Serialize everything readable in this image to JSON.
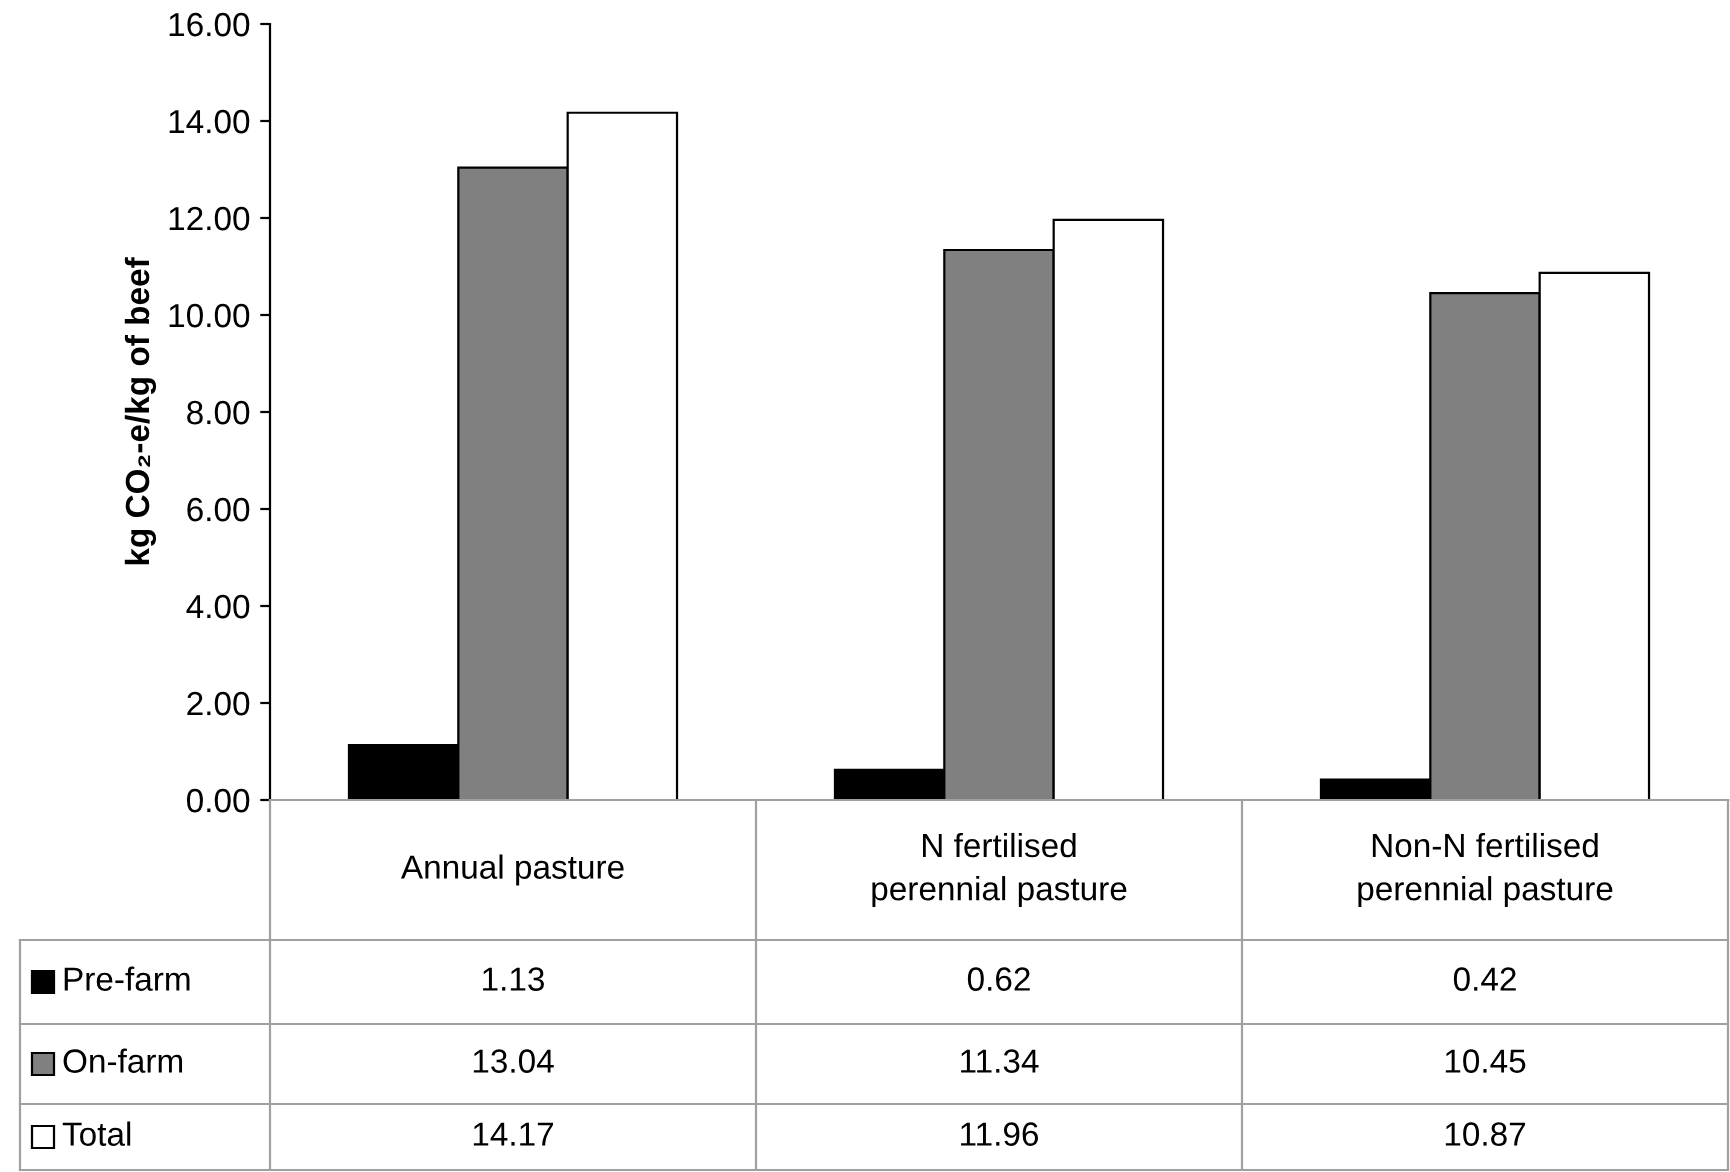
{
  "chart_data": {
    "type": "bar",
    "ylabel": "kg CO₂-e/kg of beef",
    "categories": [
      "Annual pasture",
      "N fertilised\nperennial pasture",
      "Non-N fertilised\nperennial pasture"
    ],
    "series": [
      {
        "name": "Pre-farm",
        "color": "#000000",
        "values": [
          1.13,
          0.62,
          0.42
        ]
      },
      {
        "name": "On-farm",
        "color": "#808080",
        "values": [
          13.04,
          11.34,
          10.45
        ]
      },
      {
        "name": "Total",
        "color": "#ffffff",
        "values": [
          14.17,
          11.96,
          10.87
        ]
      }
    ],
    "ylim": [
      0,
      16
    ],
    "yticks": [
      {
        "value": 0,
        "label": "0.00"
      },
      {
        "value": 2,
        "label": "2.00"
      },
      {
        "value": 4,
        "label": "4.00"
      },
      {
        "value": 6,
        "label": "6.00"
      },
      {
        "value": 8,
        "label": "8.00"
      },
      {
        "value": 10,
        "label": "10.00"
      },
      {
        "value": 12,
        "label": "12.00"
      },
      {
        "value": 14,
        "label": "14.00"
      },
      {
        "value": 16,
        "label": "16.00"
      }
    ],
    "grid": false,
    "legend": "bottom",
    "data_labels": true
  }
}
